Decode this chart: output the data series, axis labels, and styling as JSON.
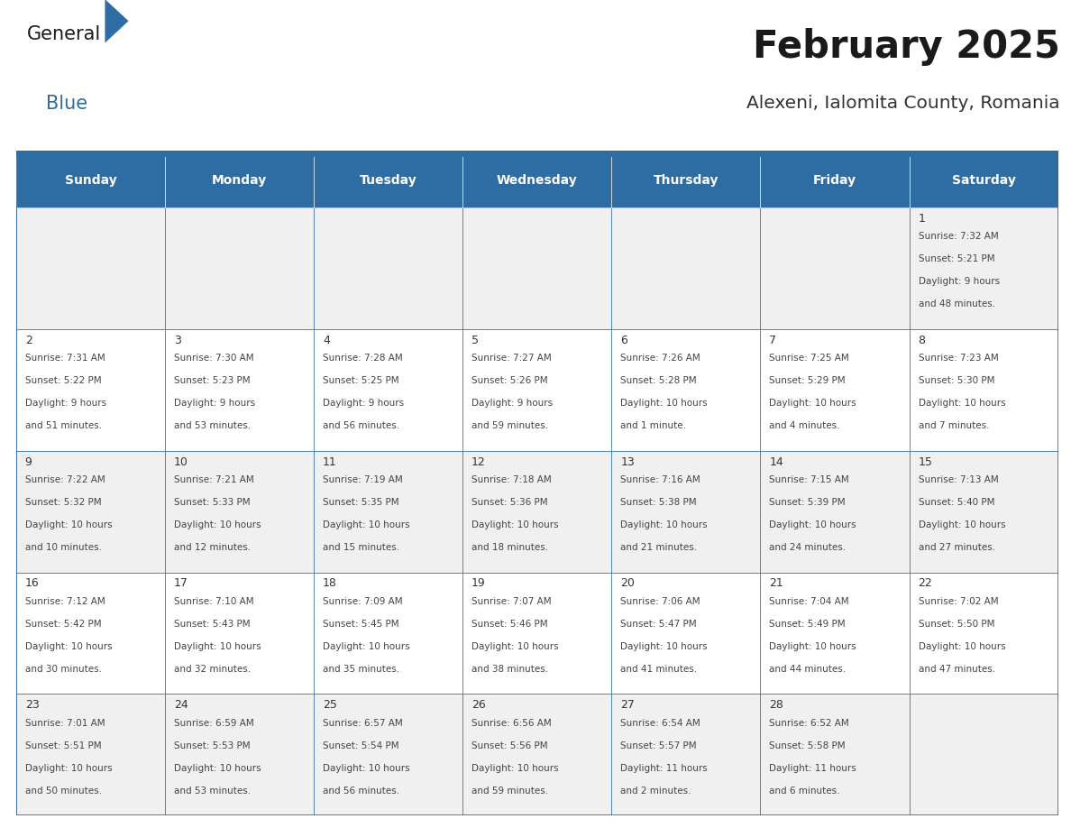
{
  "title": "February 2025",
  "subtitle": "Alexeni, Ialomita County, Romania",
  "days_of_week": [
    "Sunday",
    "Monday",
    "Tuesday",
    "Wednesday",
    "Thursday",
    "Friday",
    "Saturday"
  ],
  "header_bg": "#2E6DA4",
  "header_text": "#FFFFFF",
  "cell_bg_odd": "#F0F0F0",
  "cell_bg_even": "#FFFFFF",
  "border_color": "#2E6DA4",
  "day_number_color": "#333333",
  "info_text_color": "#444444",
  "title_color": "#1a1a1a",
  "subtitle_color": "#333333",
  "logo_general_color": "#1a1a1a",
  "logo_blue_color": "#2E6DA4",
  "calendar_data": [
    [
      null,
      null,
      null,
      null,
      null,
      null,
      {
        "day": "1",
        "line1": "Sunrise: 7:32 AM",
        "line2": "Sunset: 5:21 PM",
        "line3": "Daylight: 9 hours",
        "line4": "and 48 minutes."
      }
    ],
    [
      {
        "day": "2",
        "line1": "Sunrise: 7:31 AM",
        "line2": "Sunset: 5:22 PM",
        "line3": "Daylight: 9 hours",
        "line4": "and 51 minutes."
      },
      {
        "day": "3",
        "line1": "Sunrise: 7:30 AM",
        "line2": "Sunset: 5:23 PM",
        "line3": "Daylight: 9 hours",
        "line4": "and 53 minutes."
      },
      {
        "day": "4",
        "line1": "Sunrise: 7:28 AM",
        "line2": "Sunset: 5:25 PM",
        "line3": "Daylight: 9 hours",
        "line4": "and 56 minutes."
      },
      {
        "day": "5",
        "line1": "Sunrise: 7:27 AM",
        "line2": "Sunset: 5:26 PM",
        "line3": "Daylight: 9 hours",
        "line4": "and 59 minutes."
      },
      {
        "day": "6",
        "line1": "Sunrise: 7:26 AM",
        "line2": "Sunset: 5:28 PM",
        "line3": "Daylight: 10 hours",
        "line4": "and 1 minute."
      },
      {
        "day": "7",
        "line1": "Sunrise: 7:25 AM",
        "line2": "Sunset: 5:29 PM",
        "line3": "Daylight: 10 hours",
        "line4": "and 4 minutes."
      },
      {
        "day": "8",
        "line1": "Sunrise: 7:23 AM",
        "line2": "Sunset: 5:30 PM",
        "line3": "Daylight: 10 hours",
        "line4": "and 7 minutes."
      }
    ],
    [
      {
        "day": "9",
        "line1": "Sunrise: 7:22 AM",
        "line2": "Sunset: 5:32 PM",
        "line3": "Daylight: 10 hours",
        "line4": "and 10 minutes."
      },
      {
        "day": "10",
        "line1": "Sunrise: 7:21 AM",
        "line2": "Sunset: 5:33 PM",
        "line3": "Daylight: 10 hours",
        "line4": "and 12 minutes."
      },
      {
        "day": "11",
        "line1": "Sunrise: 7:19 AM",
        "line2": "Sunset: 5:35 PM",
        "line3": "Daylight: 10 hours",
        "line4": "and 15 minutes."
      },
      {
        "day": "12",
        "line1": "Sunrise: 7:18 AM",
        "line2": "Sunset: 5:36 PM",
        "line3": "Daylight: 10 hours",
        "line4": "and 18 minutes."
      },
      {
        "day": "13",
        "line1": "Sunrise: 7:16 AM",
        "line2": "Sunset: 5:38 PM",
        "line3": "Daylight: 10 hours",
        "line4": "and 21 minutes."
      },
      {
        "day": "14",
        "line1": "Sunrise: 7:15 AM",
        "line2": "Sunset: 5:39 PM",
        "line3": "Daylight: 10 hours",
        "line4": "and 24 minutes."
      },
      {
        "day": "15",
        "line1": "Sunrise: 7:13 AM",
        "line2": "Sunset: 5:40 PM",
        "line3": "Daylight: 10 hours",
        "line4": "and 27 minutes."
      }
    ],
    [
      {
        "day": "16",
        "line1": "Sunrise: 7:12 AM",
        "line2": "Sunset: 5:42 PM",
        "line3": "Daylight: 10 hours",
        "line4": "and 30 minutes."
      },
      {
        "day": "17",
        "line1": "Sunrise: 7:10 AM",
        "line2": "Sunset: 5:43 PM",
        "line3": "Daylight: 10 hours",
        "line4": "and 32 minutes."
      },
      {
        "day": "18",
        "line1": "Sunrise: 7:09 AM",
        "line2": "Sunset: 5:45 PM",
        "line3": "Daylight: 10 hours",
        "line4": "and 35 minutes."
      },
      {
        "day": "19",
        "line1": "Sunrise: 7:07 AM",
        "line2": "Sunset: 5:46 PM",
        "line3": "Daylight: 10 hours",
        "line4": "and 38 minutes."
      },
      {
        "day": "20",
        "line1": "Sunrise: 7:06 AM",
        "line2": "Sunset: 5:47 PM",
        "line3": "Daylight: 10 hours",
        "line4": "and 41 minutes."
      },
      {
        "day": "21",
        "line1": "Sunrise: 7:04 AM",
        "line2": "Sunset: 5:49 PM",
        "line3": "Daylight: 10 hours",
        "line4": "and 44 minutes."
      },
      {
        "day": "22",
        "line1": "Sunrise: 7:02 AM",
        "line2": "Sunset: 5:50 PM",
        "line3": "Daylight: 10 hours",
        "line4": "and 47 minutes."
      }
    ],
    [
      {
        "day": "23",
        "line1": "Sunrise: 7:01 AM",
        "line2": "Sunset: 5:51 PM",
        "line3": "Daylight: 10 hours",
        "line4": "and 50 minutes."
      },
      {
        "day": "24",
        "line1": "Sunrise: 6:59 AM",
        "line2": "Sunset: 5:53 PM",
        "line3": "Daylight: 10 hours",
        "line4": "and 53 minutes."
      },
      {
        "day": "25",
        "line1": "Sunrise: 6:57 AM",
        "line2": "Sunset: 5:54 PM",
        "line3": "Daylight: 10 hours",
        "line4": "and 56 minutes."
      },
      {
        "day": "26",
        "line1": "Sunrise: 6:56 AM",
        "line2": "Sunset: 5:56 PM",
        "line3": "Daylight: 10 hours",
        "line4": "and 59 minutes."
      },
      {
        "day": "27",
        "line1": "Sunrise: 6:54 AM",
        "line2": "Sunset: 5:57 PM",
        "line3": "Daylight: 11 hours",
        "line4": "and 2 minutes."
      },
      {
        "day": "28",
        "line1": "Sunrise: 6:52 AM",
        "line2": "Sunset: 5:58 PM",
        "line3": "Daylight: 11 hours",
        "line4": "and 6 minutes."
      },
      null
    ]
  ]
}
